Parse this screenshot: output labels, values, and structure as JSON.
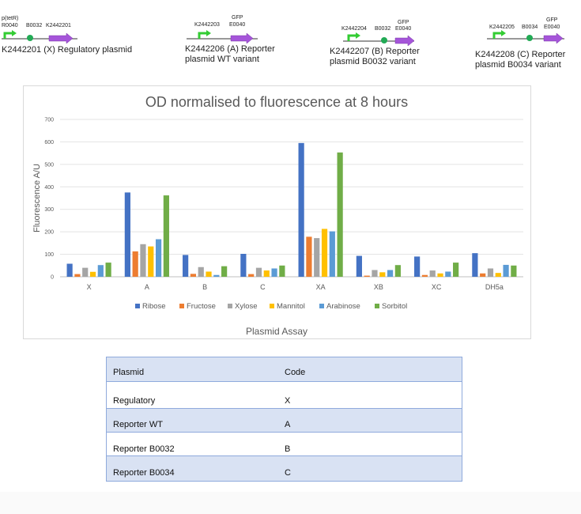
{
  "constructs": [
    {
      "parts": [
        "p(tetR)",
        "R0040",
        "B0032",
        "K2442201"
      ],
      "title_lines": [
        "K2442201 (X) Regulatory plasmid"
      ]
    },
    {
      "parts": [
        "K2442203",
        "GFP",
        "E0040"
      ],
      "title_lines": [
        "K2442206 (A) Reporter",
        "plasmid WT variant"
      ]
    },
    {
      "parts": [
        "K2442204",
        "B0032",
        "GFP",
        "E0040"
      ],
      "title_lines": [
        "K2442207 (B) Reporter",
        "plasmid B0032 variant"
      ]
    },
    {
      "parts": [
        "K2442205",
        "B0034",
        "GFP",
        "E0040"
      ],
      "title_lines": [
        "K2442208 (C) Reporter",
        "plasmid B0034 variant"
      ]
    }
  ],
  "colors": {
    "Ribose": "#4472c4",
    "Fructose": "#ed7d31",
    "Xylose": "#a5a5a5",
    "Mannitol": "#ffc000",
    "Arabinose": "#5b9bd5",
    "Sorbitol": "#70ad47",
    "promoter": "#33cc33",
    "rbs": "#22aa55",
    "gene": "#9933cc",
    "table_header": "#d9e2f3"
  },
  "chart_data": {
    "type": "bar",
    "title": "OD normalised to fluorescence at 8 hours",
    "xlabel": "Plasmid Assay",
    "ylabel": "Fluorescence A/U",
    "ylim": [
      0,
      700
    ],
    "yticks": [
      0,
      100,
      200,
      300,
      400,
      500,
      600,
      700
    ],
    "grid": true,
    "legend_position": "bottom",
    "categories": [
      "X",
      "A",
      "B",
      "C",
      "XA",
      "XB",
      "XC",
      "DH5a"
    ],
    "series": [
      {
        "name": "Ribose",
        "values": [
          58,
          375,
          97,
          102,
          595,
          93,
          90,
          105
        ]
      },
      {
        "name": "Fructose",
        "values": [
          12,
          113,
          13,
          12,
          178,
          5,
          8,
          15
        ]
      },
      {
        "name": "Xylose",
        "values": [
          40,
          145,
          43,
          40,
          172,
          30,
          28,
          37
        ]
      },
      {
        "name": "Mannitol",
        "values": [
          22,
          135,
          23,
          28,
          213,
          20,
          15,
          17
        ]
      },
      {
        "name": "Arabinose",
        "values": [
          52,
          167,
          8,
          37,
          202,
          30,
          23,
          53
        ]
      },
      {
        "name": "Sorbitol",
        "values": [
          63,
          362,
          47,
          50,
          553,
          52,
          63,
          50
        ]
      }
    ]
  },
  "table": {
    "headers": [
      "Plasmid",
      "Code"
    ],
    "rows": [
      [
        "Regulatory",
        "X"
      ],
      [
        "Reporter WT",
        "A"
      ],
      [
        "Reporter B0032",
        "B"
      ],
      [
        "Reporter B0034",
        "C"
      ]
    ]
  }
}
